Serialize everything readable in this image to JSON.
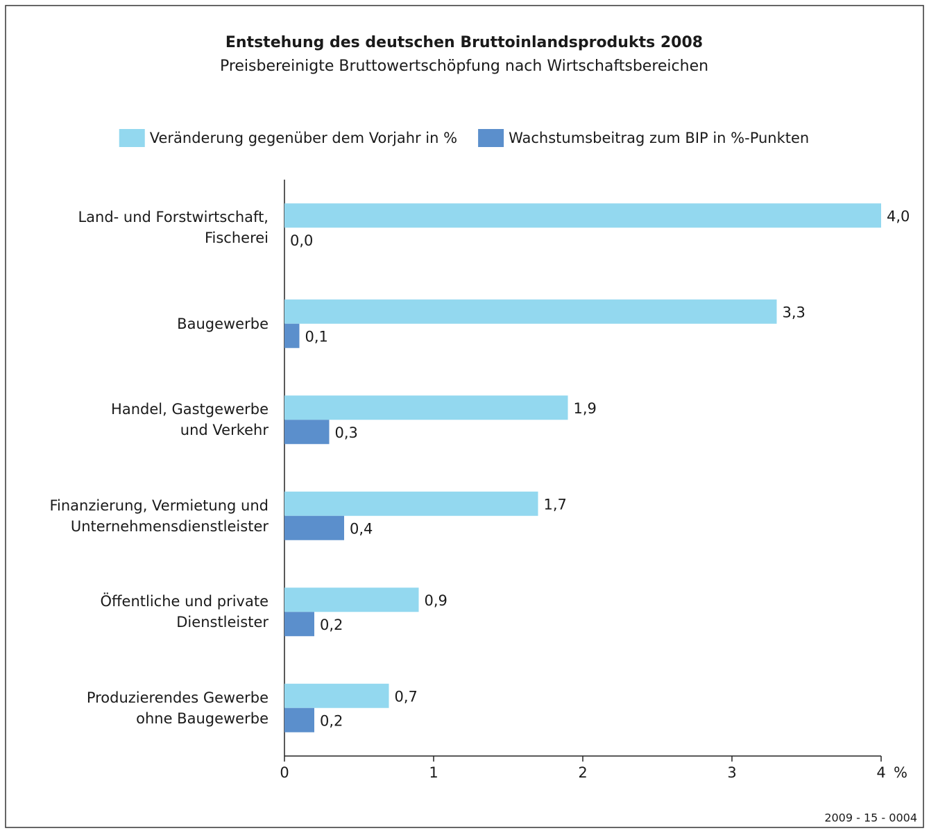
{
  "chart_data": {
    "type": "hbar",
    "title": "Entstehung des deutschen Bruttoinlandsprodukts 2008",
    "subtitle": "Preisbereinigte Bruttowertschöpfung nach Wirtschaftsbereichen",
    "categories": [
      "Land- und Forstwirtschaft,\nFischerei",
      "Baugewerbe",
      "Handel, Gastgewerbe\nund Verkehr",
      "Finanzierung, Vermietung und\nUnternehmensdienstleister",
      "Öffentliche und private\nDienstleister",
      "Produzierendes Gewerbe\nohne Baugewerbe"
    ],
    "series": [
      {
        "name": "Veränderung gegenüber dem Vorjahr in %",
        "color": "#93d8ef",
        "values": [
          4.0,
          3.3,
          1.9,
          1.7,
          0.9,
          0.7
        ],
        "value_labels": [
          "4,0",
          "3,3",
          "1,9",
          "1,7",
          "0,9",
          "0,7"
        ]
      },
      {
        "name": "Wachstumsbeitrag zum BIP in %-Punkten",
        "color": "#5b8fcc",
        "values": [
          0.0,
          0.1,
          0.3,
          0.4,
          0.2,
          0.2
        ],
        "value_labels": [
          "0,0",
          "0,1",
          "0,3",
          "0,4",
          "0,2",
          "0,2"
        ]
      }
    ],
    "xlabel": "%",
    "xlim": [
      0,
      4
    ],
    "xticks": [
      0,
      1,
      2,
      3,
      4
    ],
    "legend": "top",
    "footnote": "2009 - 15 - 0004"
  }
}
